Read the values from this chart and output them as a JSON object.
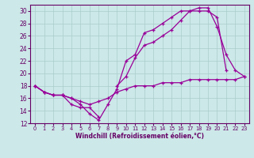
{
  "xlabel": "Windchill (Refroidissement éolien,°C)",
  "ylabel": "",
  "xlim": [
    -0.5,
    23.5
  ],
  "ylim": [
    12,
    31
  ],
  "xticks": [
    0,
    1,
    2,
    3,
    4,
    5,
    6,
    7,
    8,
    9,
    10,
    11,
    12,
    13,
    14,
    15,
    16,
    17,
    18,
    19,
    20,
    21,
    22,
    23
  ],
  "yticks": [
    12,
    14,
    16,
    18,
    20,
    22,
    24,
    26,
    28,
    30
  ],
  "line_color": "#990099",
  "bg_color": "#cce8e8",
  "grid_color": "#aacccc",
  "line1_y": [
    18,
    17,
    16.5,
    16.5,
    16,
    15,
    13.5,
    12.5,
    15,
    17.5,
    22,
    23,
    26.5,
    27,
    28,
    29,
    30,
    30,
    30,
    30,
    29,
    20.5,
    null,
    null
  ],
  "line2_y": [
    18,
    17,
    16.5,
    16.5,
    15,
    14.5,
    14.5,
    13.0,
    null,
    18,
    19.5,
    22.5,
    24.5,
    25,
    26,
    27,
    28.5,
    30,
    30.5,
    30.5,
    27.5,
    23,
    20.5,
    19.5
  ],
  "line3_y": [
    18,
    17,
    16.5,
    16.5,
    16,
    15.5,
    15,
    15.5,
    16,
    17,
    17.5,
    18,
    18,
    18,
    18.5,
    18.5,
    18.5,
    19,
    19,
    19,
    19,
    19,
    19,
    19.5
  ]
}
